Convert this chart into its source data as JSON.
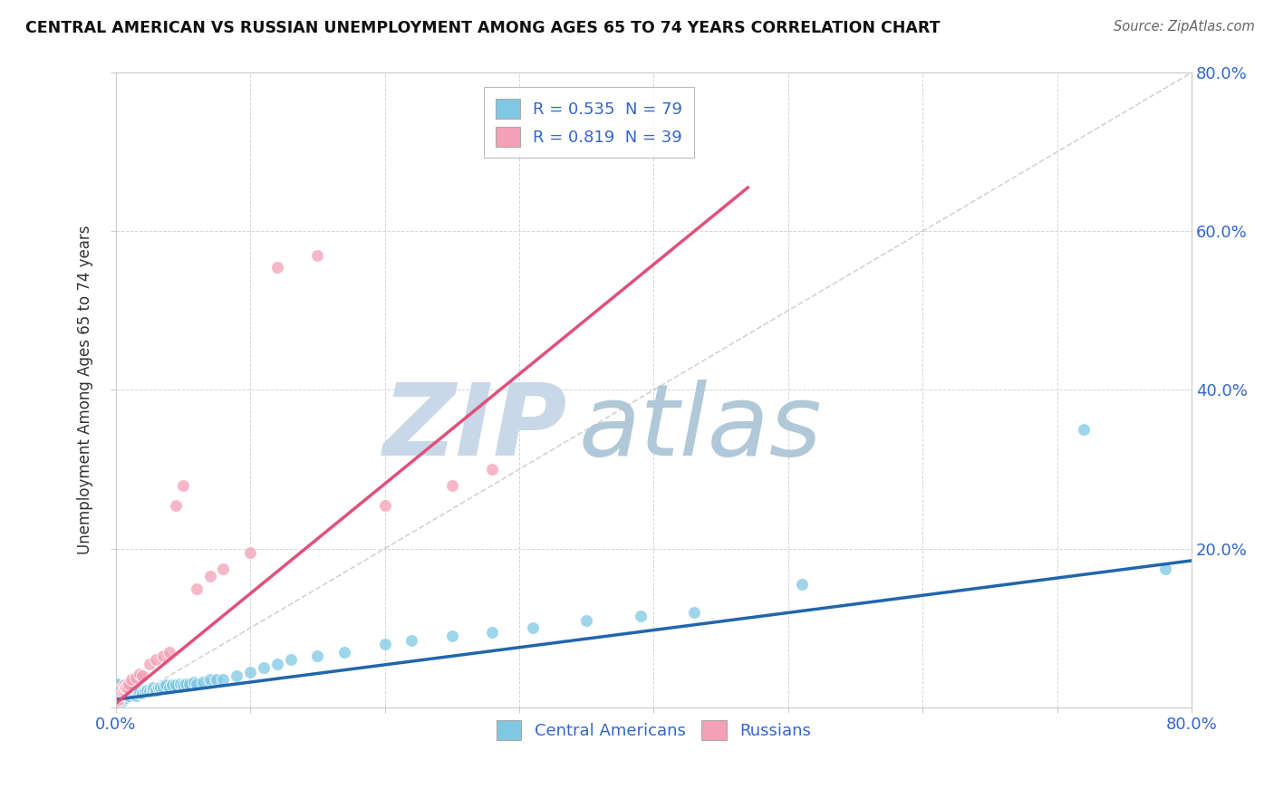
{
  "title": "CENTRAL AMERICAN VS RUSSIAN UNEMPLOYMENT AMONG AGES 65 TO 74 YEARS CORRELATION CHART",
  "source": "Source: ZipAtlas.com",
  "ylabel": "Unemployment Among Ages 65 to 74 years",
  "xlim": [
    0,
    0.8
  ],
  "ylim": [
    0,
    0.8
  ],
  "background_color": "#ffffff",
  "grid_color": "#cccccc",
  "watermark_zip": "ZIP",
  "watermark_atlas": "atlas",
  "watermark_color_zip": "#c8d8e8",
  "watermark_color_atlas": "#b0c8d8",
  "legend_line1": "R = 0.535  N = 79",
  "legend_line2": "R = 0.819  N = 39",
  "blue_color": "#7ec8e3",
  "pink_color": "#f4a0b5",
  "blue_line_color": "#2166ac",
  "pink_line_color": "#e0507a",
  "ref_line_color": "#c0c0c0",
  "ca_trend_x": [
    0.0,
    0.8
  ],
  "ca_trend_y": [
    0.01,
    0.185
  ],
  "ru_trend_x": [
    0.0,
    0.47
  ],
  "ru_trend_y": [
    0.005,
    0.655
  ],
  "ca_x": [
    0.001,
    0.001,
    0.001,
    0.001,
    0.001,
    0.001,
    0.001,
    0.001,
    0.001,
    0.001,
    0.002,
    0.002,
    0.002,
    0.002,
    0.003,
    0.003,
    0.003,
    0.004,
    0.004,
    0.004,
    0.005,
    0.005,
    0.005,
    0.006,
    0.006,
    0.007,
    0.008,
    0.008,
    0.009,
    0.01,
    0.011,
    0.012,
    0.013,
    0.015,
    0.016,
    0.017,
    0.018,
    0.02,
    0.022,
    0.023,
    0.025,
    0.027,
    0.028,
    0.03,
    0.032,
    0.033,
    0.035,
    0.037,
    0.04,
    0.042,
    0.045,
    0.048,
    0.05,
    0.052,
    0.055,
    0.058,
    0.06,
    0.065,
    0.07,
    0.075,
    0.08,
    0.09,
    0.1,
    0.11,
    0.12,
    0.13,
    0.15,
    0.17,
    0.2,
    0.22,
    0.25,
    0.28,
    0.31,
    0.35,
    0.39,
    0.43,
    0.51,
    0.72,
    0.78
  ],
  "ca_y": [
    0.01,
    0.012,
    0.015,
    0.018,
    0.02,
    0.022,
    0.025,
    0.028,
    0.03,
    0.005,
    0.008,
    0.01,
    0.015,
    0.02,
    0.01,
    0.015,
    0.02,
    0.012,
    0.018,
    0.022,
    0.008,
    0.015,
    0.02,
    0.01,
    0.018,
    0.015,
    0.012,
    0.02,
    0.018,
    0.015,
    0.018,
    0.02,
    0.018,
    0.015,
    0.02,
    0.018,
    0.022,
    0.018,
    0.02,
    0.022,
    0.02,
    0.022,
    0.025,
    0.022,
    0.025,
    0.025,
    0.025,
    0.028,
    0.025,
    0.028,
    0.028,
    0.03,
    0.028,
    0.03,
    0.03,
    0.032,
    0.03,
    0.032,
    0.035,
    0.035,
    0.035,
    0.04,
    0.045,
    0.05,
    0.055,
    0.06,
    0.065,
    0.07,
    0.08,
    0.085,
    0.09,
    0.095,
    0.1,
    0.11,
    0.115,
    0.12,
    0.155,
    0.35,
    0.175
  ],
  "ru_x": [
    0.001,
    0.001,
    0.001,
    0.001,
    0.001,
    0.002,
    0.002,
    0.002,
    0.003,
    0.003,
    0.004,
    0.004,
    0.005,
    0.005,
    0.006,
    0.006,
    0.007,
    0.008,
    0.009,
    0.01,
    0.012,
    0.015,
    0.018,
    0.02,
    0.025,
    0.03,
    0.035,
    0.04,
    0.045,
    0.05,
    0.06,
    0.07,
    0.08,
    0.1,
    0.12,
    0.15,
    0.2,
    0.25,
    0.28
  ],
  "ru_y": [
    0.008,
    0.012,
    0.015,
    0.018,
    0.022,
    0.01,
    0.015,
    0.02,
    0.015,
    0.02,
    0.018,
    0.022,
    0.02,
    0.025,
    0.022,
    0.028,
    0.025,
    0.025,
    0.025,
    0.03,
    0.035,
    0.038,
    0.042,
    0.04,
    0.055,
    0.06,
    0.065,
    0.07,
    0.255,
    0.28,
    0.15,
    0.165,
    0.175,
    0.195,
    0.555,
    0.57,
    0.255,
    0.28,
    0.3
  ]
}
